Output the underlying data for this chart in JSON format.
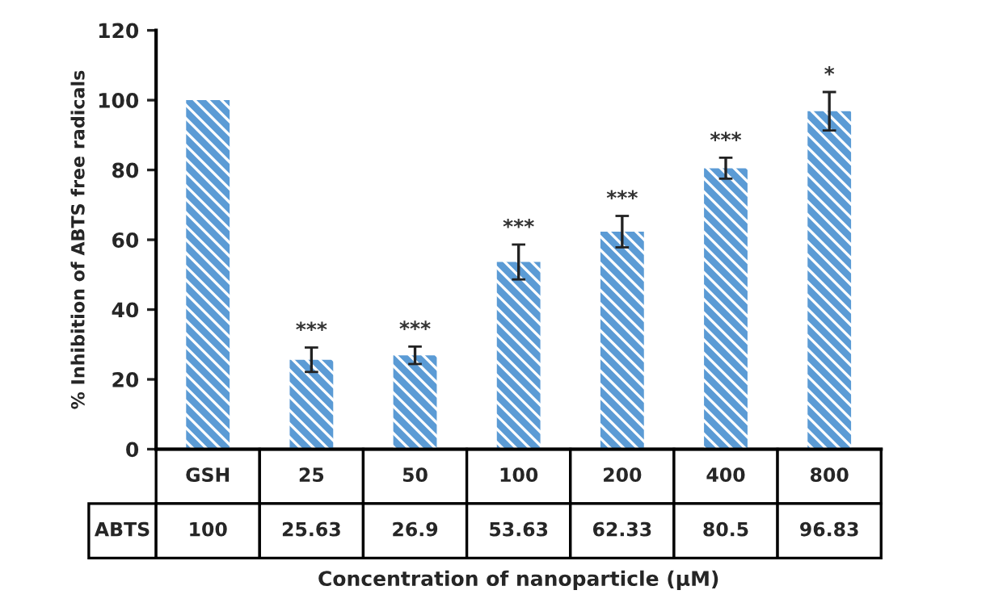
{
  "chart_data": {
    "type": "bar",
    "ylabel": "% Inhibition of ABTS free radicals",
    "xlabel": "Concentration of nanoparticle (μM)",
    "categories": [
      "GSH",
      "25",
      "50",
      "100",
      "200",
      "400",
      "800"
    ],
    "series": [
      {
        "name": "ABTS",
        "color": "#5b9bd5",
        "values": [
          100,
          25.63,
          26.9,
          53.63,
          62.33,
          80.5,
          96.83
        ],
        "errors": [
          null,
          3.5,
          2.5,
          5,
          4.5,
          3,
          5.5
        ]
      }
    ],
    "data_labels": true,
    "ylim": [
      0,
      120
    ],
    "yticks": [
      0,
      20,
      40,
      60,
      80,
      100,
      120
    ],
    "annotations": [
      {
        "text": "***",
        "x": "25",
        "y": 29.13
      },
      {
        "text": "***",
        "x": "50",
        "y": 29.4
      },
      {
        "text": "***",
        "x": "100",
        "y": 58.63
      },
      {
        "text": "***",
        "x": "200",
        "y": 66.83
      },
      {
        "text": "***",
        "x": "400",
        "y": 83.5
      },
      {
        "text": "*",
        "x": "800",
        "y": 102.33
      }
    ]
  }
}
